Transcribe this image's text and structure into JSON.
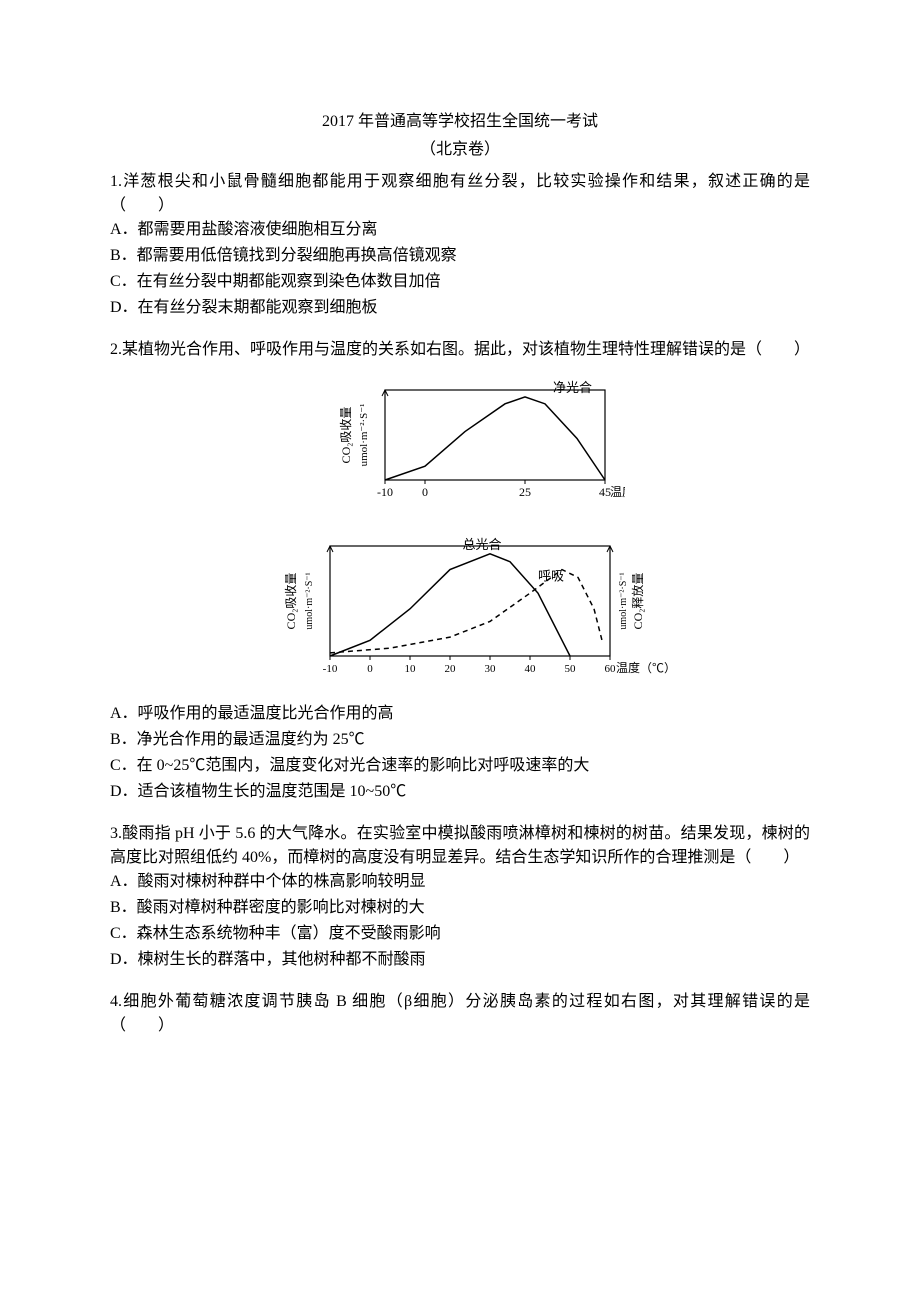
{
  "title": "2017 年普通高等学校招生全国统一考试",
  "subtitle": "（北京卷）",
  "q1": {
    "stem": "1.洋葱根尖和小鼠骨髓细胞都能用于观察细胞有丝分裂，比较实验操作和结果，叙述正确的是（　　）",
    "a": "A．都需要用盐酸溶液使细胞相互分离",
    "b": "B．都需要用低倍镜找到分裂细胞再换高倍镜观察",
    "c": "C．在有丝分裂中期都能观察到染色体数目加倍",
    "d": "D．在有丝分裂末期都能观察到细胞板"
  },
  "q2": {
    "stem": "2.某植物光合作用、呼吸作用与温度的关系如右图。据此，对该植物生理特性理解错误的是（　　）",
    "a": "A．呼吸作用的最适温度比光合作用的高",
    "b": "B．净光合作用的最适温度约为 25℃",
    "c": "C．在 0~25℃范围内，温度变化对光合速率的影响比对呼吸速率的大",
    "d": "D．适合该植物生长的温度范围是 10~50℃"
  },
  "chart_top": {
    "x_ticks": [
      "-10",
      "0",
      "25",
      "45"
    ],
    "x_label": "温度（℃）",
    "y_label": "CO₂吸收量",
    "y_unit": "umol·m⁻²·S⁻¹",
    "curve_label": "净光合",
    "curve_points": [
      [
        -10,
        0
      ],
      [
        0,
        10
      ],
      [
        10,
        35
      ],
      [
        20,
        55
      ],
      [
        25,
        60
      ],
      [
        30,
        55
      ],
      [
        38,
        30
      ],
      [
        45,
        0
      ]
    ],
    "stroke": "#000000",
    "stroke_width": 1.5
  },
  "chart_bottom": {
    "x_ticks": [
      "-10",
      "0",
      "10",
      "20",
      "30",
      "40",
      "50",
      "60"
    ],
    "x_label": "温度（℃）",
    "y_label_left": "CO₂吸收量",
    "y_label_right": "CO₂释放量",
    "y_unit": "umol·m⁻²·S⁻¹",
    "curve1_label": "总光合",
    "curve2_label": "呼吸",
    "curve1_points": [
      [
        -10,
        0
      ],
      [
        0,
        10
      ],
      [
        10,
        30
      ],
      [
        20,
        55
      ],
      [
        30,
        65
      ],
      [
        35,
        60
      ],
      [
        42,
        40
      ],
      [
        48,
        10
      ],
      [
        50,
        0
      ]
    ],
    "curve2_points": [
      [
        -10,
        2
      ],
      [
        5,
        5
      ],
      [
        20,
        12
      ],
      [
        30,
        22
      ],
      [
        40,
        40
      ],
      [
        48,
        55
      ],
      [
        52,
        50
      ],
      [
        56,
        30
      ],
      [
        58,
        10
      ]
    ],
    "stroke": "#000000",
    "dash": "5,4",
    "stroke_width": 1.5
  },
  "q3": {
    "stem": "3.酸雨指 pH 小于 5.6 的大气降水。在实验室中模拟酸雨喷淋樟树和楝树的树苗。结果发现，楝树的高度比对照组低约 40%，而樟树的高度没有明显差异。结合生态学知识所作的合理推测是（　　）",
    "a": "A．酸雨对楝树种群中个体的株高影响较明显",
    "b": "B．酸雨对樟树种群密度的影响比对楝树的大",
    "c": "C．森林生态系统物种丰（富）度不受酸雨影响",
    "d": "D．楝树生长的群落中，其他树种都不耐酸雨"
  },
  "q4": {
    "stem": "4.细胞外葡萄糖浓度调节胰岛 B 细胞（β细胞）分泌胰岛素的过程如右图，对其理解错误的是（　　）"
  },
  "colors": {
    "text": "#000000",
    "background": "#ffffff",
    "line": "#000000"
  }
}
